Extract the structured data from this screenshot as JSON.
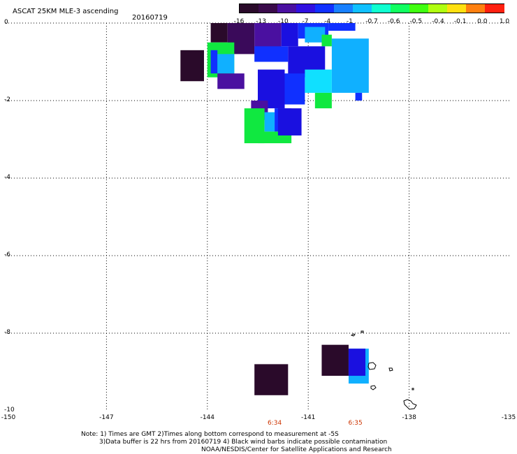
{
  "header": {
    "title": "ASCAT 25KM MLE-3 ascending",
    "date": "20160719"
  },
  "colorbar": {
    "labels": [
      "-16",
      "-13",
      "-10",
      "-7",
      "-4",
      "-1",
      "-0.7",
      "-0.6",
      "-0.5",
      "-0.4",
      "-0.1",
      "0.0",
      "1.0"
    ],
    "colors": [
      "#2a0a2a",
      "#3a0a4a",
      "#4a10a0",
      "#3010e0",
      "#1030ff",
      "#1880ff",
      "#10c0ff",
      "#10ffd0",
      "#10ff60",
      "#40ff10",
      "#b0ff10",
      "#ffe010",
      "#ff8010",
      "#ff2010"
    ]
  },
  "axes": {
    "y_labels": [
      "0",
      "-2",
      "-4",
      "-6",
      "-8",
      "-10"
    ],
    "x_labels": [
      "-150",
      "-147",
      "-144",
      "-141",
      "-138",
      "-135"
    ]
  },
  "times": [
    {
      "label": "6:34",
      "lon": -142.0
    },
    {
      "label": "6:35",
      "lon": -139.6
    }
  ],
  "notes": {
    "line1": "Note: 1) Times are GMT 2)Times along bottom correspond to measurement at -5S",
    "line2": "3)Data buffer is 22 hrs from 20160719 4) Black wind barbs indicate possible contamination",
    "line3": "NOAA/NESDIS/Center for Satellite Applications and Research"
  },
  "palette": {
    "dark_purple": "#2a0a2a",
    "purple": "#3a0a5a",
    "violet": "#4a10a0",
    "blue_dark": "#1a10e0",
    "blue": "#1030ff",
    "blue_mid": "#1870ff",
    "sky": "#10b0ff",
    "cyan": "#10e0ff",
    "green": "#10e840"
  },
  "cells": [
    {
      "lon0": -143.9,
      "lon1": -143.4,
      "lat0": 0.0,
      "lat1": -0.5,
      "c": "dark_purple"
    },
    {
      "lon0": -143.4,
      "lon1": -142.6,
      "lat0": 0.0,
      "lat1": -0.8,
      "c": "purple"
    },
    {
      "lon0": -142.6,
      "lon1": -141.8,
      "lat0": 0.0,
      "lat1": -0.8,
      "c": "violet"
    },
    {
      "lon0": -141.8,
      "lon1": -141.3,
      "lat0": 0.0,
      "lat1": -0.6,
      "c": "blue_dark"
    },
    {
      "lon0": -141.3,
      "lon1": -140.4,
      "lat0": 0.0,
      "lat1": -0.4,
      "c": "blue"
    },
    {
      "lon0": -140.4,
      "lon1": -139.6,
      "lat0": 0.0,
      "lat1": -0.2,
      "c": "blue"
    },
    {
      "lon0": -141.1,
      "lon1": -140.5,
      "lat0": -0.1,
      "lat1": -0.5,
      "c": "sky"
    },
    {
      "lon0": -140.6,
      "lon1": -140.3,
      "lat0": -0.3,
      "lat1": -0.6,
      "c": "green"
    },
    {
      "lon0": -140.3,
      "lon1": -139.2,
      "lat0": -0.4,
      "lat1": -1.8,
      "c": "sky"
    },
    {
      "lon0": -142.6,
      "lon1": -141.6,
      "lat0": -0.6,
      "lat1": -1.0,
      "c": "blue"
    },
    {
      "lon0": -141.6,
      "lon1": -140.5,
      "lat0": -0.6,
      "lat1": -1.4,
      "c": "blue_dark"
    },
    {
      "lon0": -144.0,
      "lon1": -143.2,
      "lat0": -0.5,
      "lat1": -1.4,
      "c": "green"
    },
    {
      "lon0": -143.9,
      "lon1": -143.7,
      "lat0": -0.7,
      "lat1": -1.3,
      "c": "blue"
    },
    {
      "lon0": -143.7,
      "lon1": -143.2,
      "lat0": -0.8,
      "lat1": -1.3,
      "c": "sky"
    },
    {
      "lon0": -144.8,
      "lon1": -144.1,
      "lat0": -0.7,
      "lat1": -1.5,
      "c": "dark_purple"
    },
    {
      "lon0": -143.7,
      "lon1": -142.9,
      "lat0": -1.3,
      "lat1": -1.7,
      "c": "violet"
    },
    {
      "lon0": -142.5,
      "lon1": -141.7,
      "lat0": -1.2,
      "lat1": -2.2,
      "c": "blue_dark"
    },
    {
      "lon0": -141.7,
      "lon1": -141.1,
      "lat0": -1.3,
      "lat1": -2.1,
      "c": "blue"
    },
    {
      "lon0": -141.1,
      "lon1": -140.3,
      "lat0": -1.2,
      "lat1": -1.8,
      "c": "cyan"
    },
    {
      "lon0": -140.8,
      "lon1": -140.3,
      "lat0": -1.8,
      "lat1": -2.2,
      "c": "green"
    },
    {
      "lon0": -139.6,
      "lon1": -139.4,
      "lat0": -1.8,
      "lat1": -2.0,
      "c": "blue"
    },
    {
      "lon0": -142.7,
      "lon1": -142.2,
      "lat0": -2.0,
      "lat1": -2.5,
      "c": "violet"
    },
    {
      "lon0": -142.9,
      "lon1": -142.3,
      "lat0": -2.2,
      "lat1": -3.1,
      "c": "green"
    },
    {
      "lon0": -142.3,
      "lon1": -142.0,
      "lat0": -2.3,
      "lat1": -2.8,
      "c": "sky"
    },
    {
      "lon0": -142.0,
      "lon1": -141.5,
      "lat0": -2.2,
      "lat1": -2.8,
      "c": "blue"
    },
    {
      "lon0": -142.5,
      "lon1": -141.5,
      "lat0": -2.8,
      "lat1": -3.1,
      "c": "green"
    },
    {
      "lon0": -141.9,
      "lon1": -141.2,
      "lat0": -2.2,
      "lat1": -2.9,
      "c": "blue_dark"
    },
    {
      "lon0": -140.6,
      "lon1": -139.8,
      "lat0": -8.3,
      "lat1": -9.1,
      "c": "dark_purple"
    },
    {
      "lon0": -139.8,
      "lon1": -139.2,
      "lat0": -8.4,
      "lat1": -9.3,
      "c": "sky"
    },
    {
      "lon0": -139.8,
      "lon1": -139.3,
      "lat0": -8.4,
      "lat1": -9.1,
      "c": "blue_dark"
    },
    {
      "lon0": -142.6,
      "lon1": -141.6,
      "lat0": -8.8,
      "lat1": -9.6,
      "c": "dark_purple"
    }
  ]
}
